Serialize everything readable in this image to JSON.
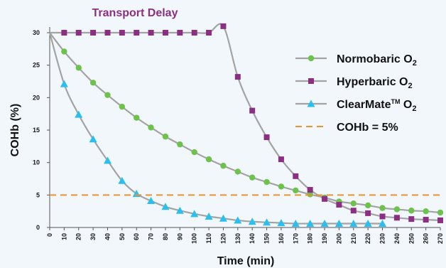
{
  "chart_data": {
    "type": "line",
    "title": "Transport Delay",
    "xlabel": "Time (min)",
    "ylabel": "COHb (%)",
    "xlim": [
      0,
      270
    ],
    "ylim": [
      0,
      30
    ],
    "x_ticks": [
      0,
      10,
      20,
      30,
      40,
      50,
      60,
      70,
      80,
      90,
      100,
      110,
      120,
      130,
      140,
      150,
      160,
      170,
      180,
      190,
      200,
      210,
      220,
      230,
      240,
      250,
      260,
      270
    ],
    "y_ticks": [
      0,
      5,
      10,
      15,
      20,
      25,
      30
    ],
    "legend_placement": "right",
    "series": [
      {
        "name": "Normobaric O2",
        "legend_label": {
          "main": "Normobaric O",
          "sub": "2"
        },
        "color": "#6cc24a",
        "marker": "circle",
        "x": [
          10,
          20,
          30,
          40,
          50,
          60,
          70,
          80,
          90,
          100,
          110,
          120,
          130,
          140,
          150,
          160,
          170,
          180,
          190,
          200,
          210,
          220,
          230,
          240,
          250,
          260,
          270
        ],
        "values": [
          27.1,
          24.6,
          22.3,
          20.4,
          18.6,
          16.9,
          15.4,
          14.0,
          12.8,
          11.6,
          10.5,
          9.5,
          8.6,
          7.7,
          7.0,
          6.3,
          5.7,
          5.1,
          4.6,
          4.0,
          3.7,
          3.4,
          3.0,
          2.8,
          2.6,
          2.5,
          2.3
        ]
      },
      {
        "name": "Hyperbaric O2",
        "legend_label": {
          "main": "Hyperbaric O",
          "sub": "2"
        },
        "color": "#8b2f83",
        "marker": "square",
        "x": [
          10,
          20,
          30,
          40,
          50,
          60,
          70,
          80,
          90,
          100,
          110,
          120,
          130,
          140,
          150,
          160,
          170,
          180,
          190,
          200,
          210,
          220,
          230,
          240,
          250,
          260,
          270
        ],
        "values": [
          30,
          30,
          30,
          30,
          30,
          30,
          30,
          30,
          30,
          30,
          30,
          31,
          23.2,
          18.0,
          13.9,
          10.5,
          7.9,
          5.8,
          4.4,
          3.5,
          2.6,
          2.2,
          1.7,
          1.5,
          1.3,
          1.2,
          1.1
        ]
      },
      {
        "name": "ClearMate O2",
        "legend_label": {
          "main": "ClearMate",
          "sup": "TM",
          "after": " O",
          "sub": "2"
        },
        "color": "#29c0ef",
        "marker": "triangle",
        "x": [
          10,
          20,
          30,
          40,
          50,
          60,
          70,
          80,
          90,
          100,
          110,
          120,
          130,
          140,
          150,
          160,
          170,
          180,
          190,
          200,
          210,
          220,
          230
        ],
        "values": [
          22.1,
          17.4,
          13.6,
          10.3,
          7.2,
          5.2,
          4.1,
          3.2,
          2.6,
          2.1,
          1.7,
          1.4,
          1.1,
          0.9,
          0.8,
          0.7,
          0.6,
          0.6,
          0.6,
          0.6,
          0.6,
          0.6,
          0.6
        ]
      },
      {
        "name": "COHb = 5%",
        "legend_label": {
          "main": "COHb = 5%"
        },
        "color": "#f0922b",
        "marker": "none",
        "dashed": true,
        "x": [
          0,
          270
        ],
        "values": [
          5,
          5
        ]
      }
    ]
  }
}
